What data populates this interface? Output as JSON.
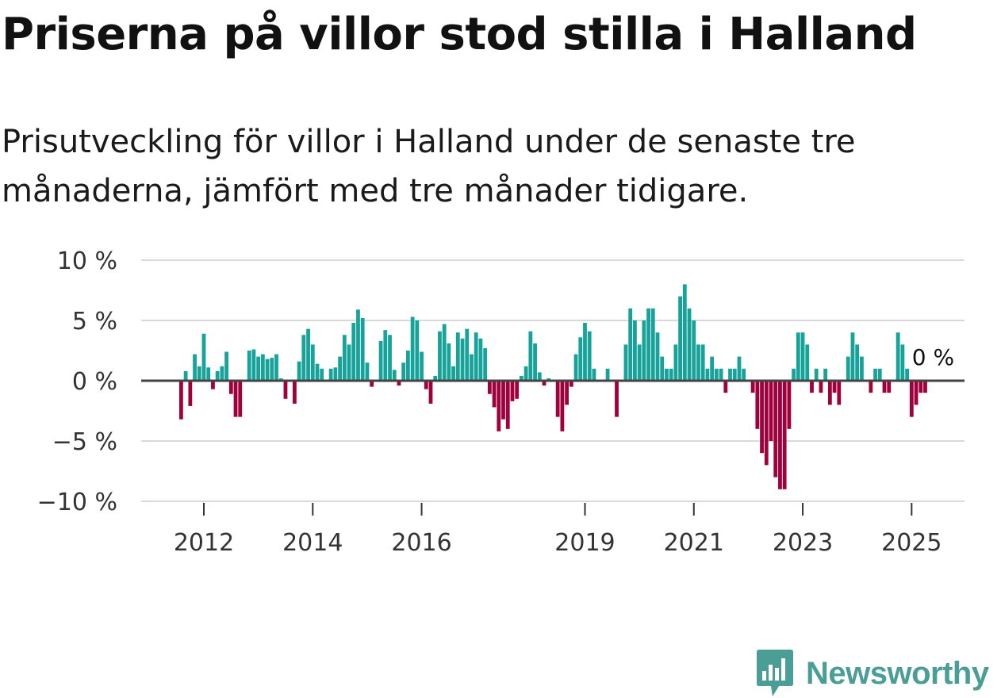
{
  "header": {
    "title": "Priserna på villor stod stilla i Halland",
    "subtitle": "Prisutveckling för villor i Halland under de senaste tre månaderna, jämfört med tre månader tidigare."
  },
  "chart_data": {
    "type": "bar",
    "title": "Priserna på villor stod stilla i Halland",
    "subtitle": "Prisutveckling för villor i Halland under de senaste tre månaderna, jämfört med tre månader tidigare.",
    "ylabel": "",
    "xlabel": "",
    "ylim": [
      -10,
      10
    ],
    "y_ticks": [
      10,
      5,
      0,
      -5,
      -10
    ],
    "y_tick_labels": [
      "10 %",
      "5 %",
      "0 %",
      "−5 %",
      "−10 %"
    ],
    "x_tick_labels": [
      "2012",
      "2014",
      "2016",
      "2019",
      "2021",
      "2023",
      "2025"
    ],
    "start": "2011-08",
    "frequency": "monthly",
    "positive_color": "#17a39a",
    "negative_color": "#a0003c",
    "last_value_label": "0 %",
    "values": [
      -3.2,
      0.8,
      -2.1,
      2.2,
      1.2,
      3.9,
      1.1,
      -0.7,
      0.8,
      1.2,
      2.4,
      -1.1,
      -3.0,
      -3.0,
      -0.1,
      2.5,
      2.6,
      2.0,
      2.2,
      1.8,
      1.9,
      2.2,
      0.2,
      -1.5,
      0.0,
      -1.9,
      1.6,
      3.8,
      4.3,
      3.0,
      1.4,
      1.0,
      0.0,
      1.0,
      1.1,
      2.0,
      3.8,
      3.0,
      4.8,
      5.9,
      5.2,
      1.5,
      -0.5,
      0.0,
      3.3,
      4.2,
      3.8,
      0.9,
      -0.4,
      1.5,
      2.5,
      5.3,
      5.0,
      2.4,
      -0.7,
      -1.9,
      0.4,
      4.1,
      4.7,
      3.1,
      1.2,
      4.0,
      3.5,
      4.3,
      2.2,
      4.0,
      3.5,
      2.7,
      -1.1,
      -2.2,
      -4.2,
      -3.2,
      -4.0,
      -1.7,
      -1.5,
      0.4,
      1.2,
      4.1,
      3.1,
      0.7,
      -0.4,
      0.2,
      0.0,
      -3.0,
      -4.2,
      -2.0,
      -0.5,
      2.2,
      3.6,
      4.8,
      4.1,
      1.0,
      0.0,
      0.0,
      1.0,
      0.0,
      -3.0,
      0.0,
      3.0,
      6.0,
      5.0,
      3.0,
      5.0,
      6.0,
      6.0,
      4.0,
      2.0,
      1.0,
      1.0,
      3.0,
      7.0,
      8.0,
      6.0,
      5.0,
      3.0,
      3.0,
      1.0,
      2.0,
      1.0,
      1.0,
      -1.0,
      1.0,
      1.0,
      2.0,
      1.0,
      0.0,
      -1.0,
      -4.0,
      -6.0,
      -7.0,
      -5.0,
      -8.0,
      -9.0,
      -9.0,
      -4.0,
      1.0,
      4.0,
      4.0,
      3.0,
      -1.0,
      1.0,
      -1.0,
      1.0,
      -2.0,
      -1.0,
      -2.0,
      0.0,
      2.0,
      4.0,
      3.0,
      2.0,
      0.0,
      -1.0,
      1.0,
      1.0,
      -1.0,
      -1.0,
      0.0,
      4.0,
      3.0,
      1.0,
      -3.0,
      -2.0,
      -1.0,
      -1.0,
      0.0
    ]
  },
  "branding": {
    "name": "Newsworthy",
    "icon": "newsworthy-logo-icon",
    "color": "#4a9e96"
  }
}
